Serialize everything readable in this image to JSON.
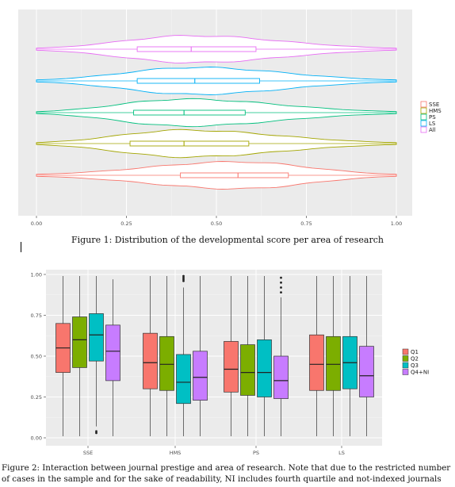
{
  "figure1": {
    "caption": "Figure 1: Distribution of the developmental score per area of research",
    "x_ticks": [
      "0.00",
      "0.25",
      "0.50",
      "0.75",
      "1.00"
    ],
    "legend": [
      {
        "label": "SSE",
        "color": "#F8766D"
      },
      {
        "label": "HMS",
        "color": "#A3A500"
      },
      {
        "label": "PS",
        "color": "#00BF7D"
      },
      {
        "label": "LS",
        "color": "#00B0F6"
      },
      {
        "label": "All",
        "color": "#E76BF3"
      }
    ]
  },
  "figure2": {
    "caption": "Figure 2: Interaction between journal prestige and area of research. Note that due to the restricted number of cases in the sample and for the sake of readability, NI includes fourth quartile and not-indexed journals",
    "y_ticks": [
      "0.00",
      "0.25",
      "0.50",
      "0.75",
      "1.00"
    ],
    "x_categories": [
      "SSE",
      "HMS",
      "PS",
      "LS"
    ],
    "legend": [
      {
        "label": "Q1",
        "color": "#F8766D"
      },
      {
        "label": "Q2",
        "color": "#7CAE00"
      },
      {
        "label": "Q3",
        "color": "#00BFC4"
      },
      {
        "label": "Q4+NI",
        "color": "#C77CFF"
      }
    ]
  },
  "chart_data": [
    {
      "type": "violin",
      "orientation": "horizontal",
      "xlim": [
        0,
        1
      ],
      "x_ticks": [
        0,
        0.25,
        0.5,
        0.75,
        1.0
      ],
      "grid": true,
      "legend_position": "right",
      "series": [
        {
          "name": "All",
          "q1": 0.28,
          "median": 0.43,
          "q3": 0.61,
          "min": 0.0,
          "max": 1.0
        },
        {
          "name": "LS",
          "q1": 0.28,
          "median": 0.44,
          "q3": 0.62,
          "min": 0.0,
          "max": 1.0
        },
        {
          "name": "PS",
          "q1": 0.27,
          "median": 0.41,
          "q3": 0.58,
          "min": 0.0,
          "max": 1.0
        },
        {
          "name": "HMS",
          "q1": 0.26,
          "median": 0.41,
          "q3": 0.59,
          "min": 0.0,
          "max": 1.0
        },
        {
          "name": "SSE",
          "q1": 0.4,
          "median": 0.56,
          "q3": 0.7,
          "min": 0.0,
          "max": 1.0
        }
      ]
    },
    {
      "type": "boxplot",
      "categories": [
        "SSE",
        "HMS",
        "PS",
        "LS"
      ],
      "ylim": [
        0,
        1
      ],
      "y_ticks": [
        0,
        0.25,
        0.5,
        0.75,
        1.0
      ],
      "grid": true,
      "legend_position": "right",
      "series": [
        {
          "name": "Q1",
          "boxes": [
            {
              "min": 0.01,
              "q1": 0.4,
              "median": 0.55,
              "q3": 0.7,
              "max": 0.99
            },
            {
              "min": 0.01,
              "q1": 0.3,
              "median": 0.46,
              "q3": 0.64,
              "max": 0.99
            },
            {
              "min": 0.01,
              "q1": 0.28,
              "median": 0.42,
              "q3": 0.59,
              "max": 0.99
            },
            {
              "min": 0.01,
              "q1": 0.29,
              "median": 0.45,
              "q3": 0.63,
              "max": 0.99
            }
          ]
        },
        {
          "name": "Q2",
          "boxes": [
            {
              "min": 0.01,
              "q1": 0.43,
              "median": 0.6,
              "q3": 0.74,
              "max": 0.99
            },
            {
              "min": 0.01,
              "q1": 0.29,
              "median": 0.45,
              "q3": 0.62,
              "max": 0.99
            },
            {
              "min": 0.01,
              "q1": 0.26,
              "median": 0.4,
              "q3": 0.57,
              "max": 0.99
            },
            {
              "min": 0.01,
              "q1": 0.29,
              "median": 0.45,
              "q3": 0.62,
              "max": 0.99
            }
          ]
        },
        {
          "name": "Q3",
          "boxes": [
            {
              "min": 0.07,
              "q1": 0.47,
              "median": 0.63,
              "q3": 0.76,
              "max": 0.99,
              "outliers": [
                0.04,
                0.03
              ]
            },
            {
              "min": 0.01,
              "q1": 0.21,
              "median": 0.34,
              "q3": 0.51,
              "max": 0.92,
              "outliers": [
                0.96,
                0.97,
                0.98,
                0.99
              ]
            },
            {
              "min": 0.01,
              "q1": 0.25,
              "median": 0.4,
              "q3": 0.6,
              "max": 0.99
            },
            {
              "min": 0.01,
              "q1": 0.3,
              "median": 0.46,
              "q3": 0.62,
              "max": 0.99
            }
          ]
        },
        {
          "name": "Q4+NI",
          "boxes": [
            {
              "min": 0.01,
              "q1": 0.35,
              "median": 0.53,
              "q3": 0.69,
              "max": 0.97
            },
            {
              "min": 0.01,
              "q1": 0.23,
              "median": 0.37,
              "q3": 0.53,
              "max": 0.99
            },
            {
              "min": 0.01,
              "q1": 0.24,
              "median": 0.35,
              "q3": 0.5,
              "max": 0.86,
              "outliers": [
                0.89,
                0.92,
                0.95,
                0.98
              ]
            },
            {
              "min": 0.01,
              "q1": 0.25,
              "median": 0.38,
              "q3": 0.56,
              "max": 0.99
            }
          ]
        }
      ]
    }
  ]
}
